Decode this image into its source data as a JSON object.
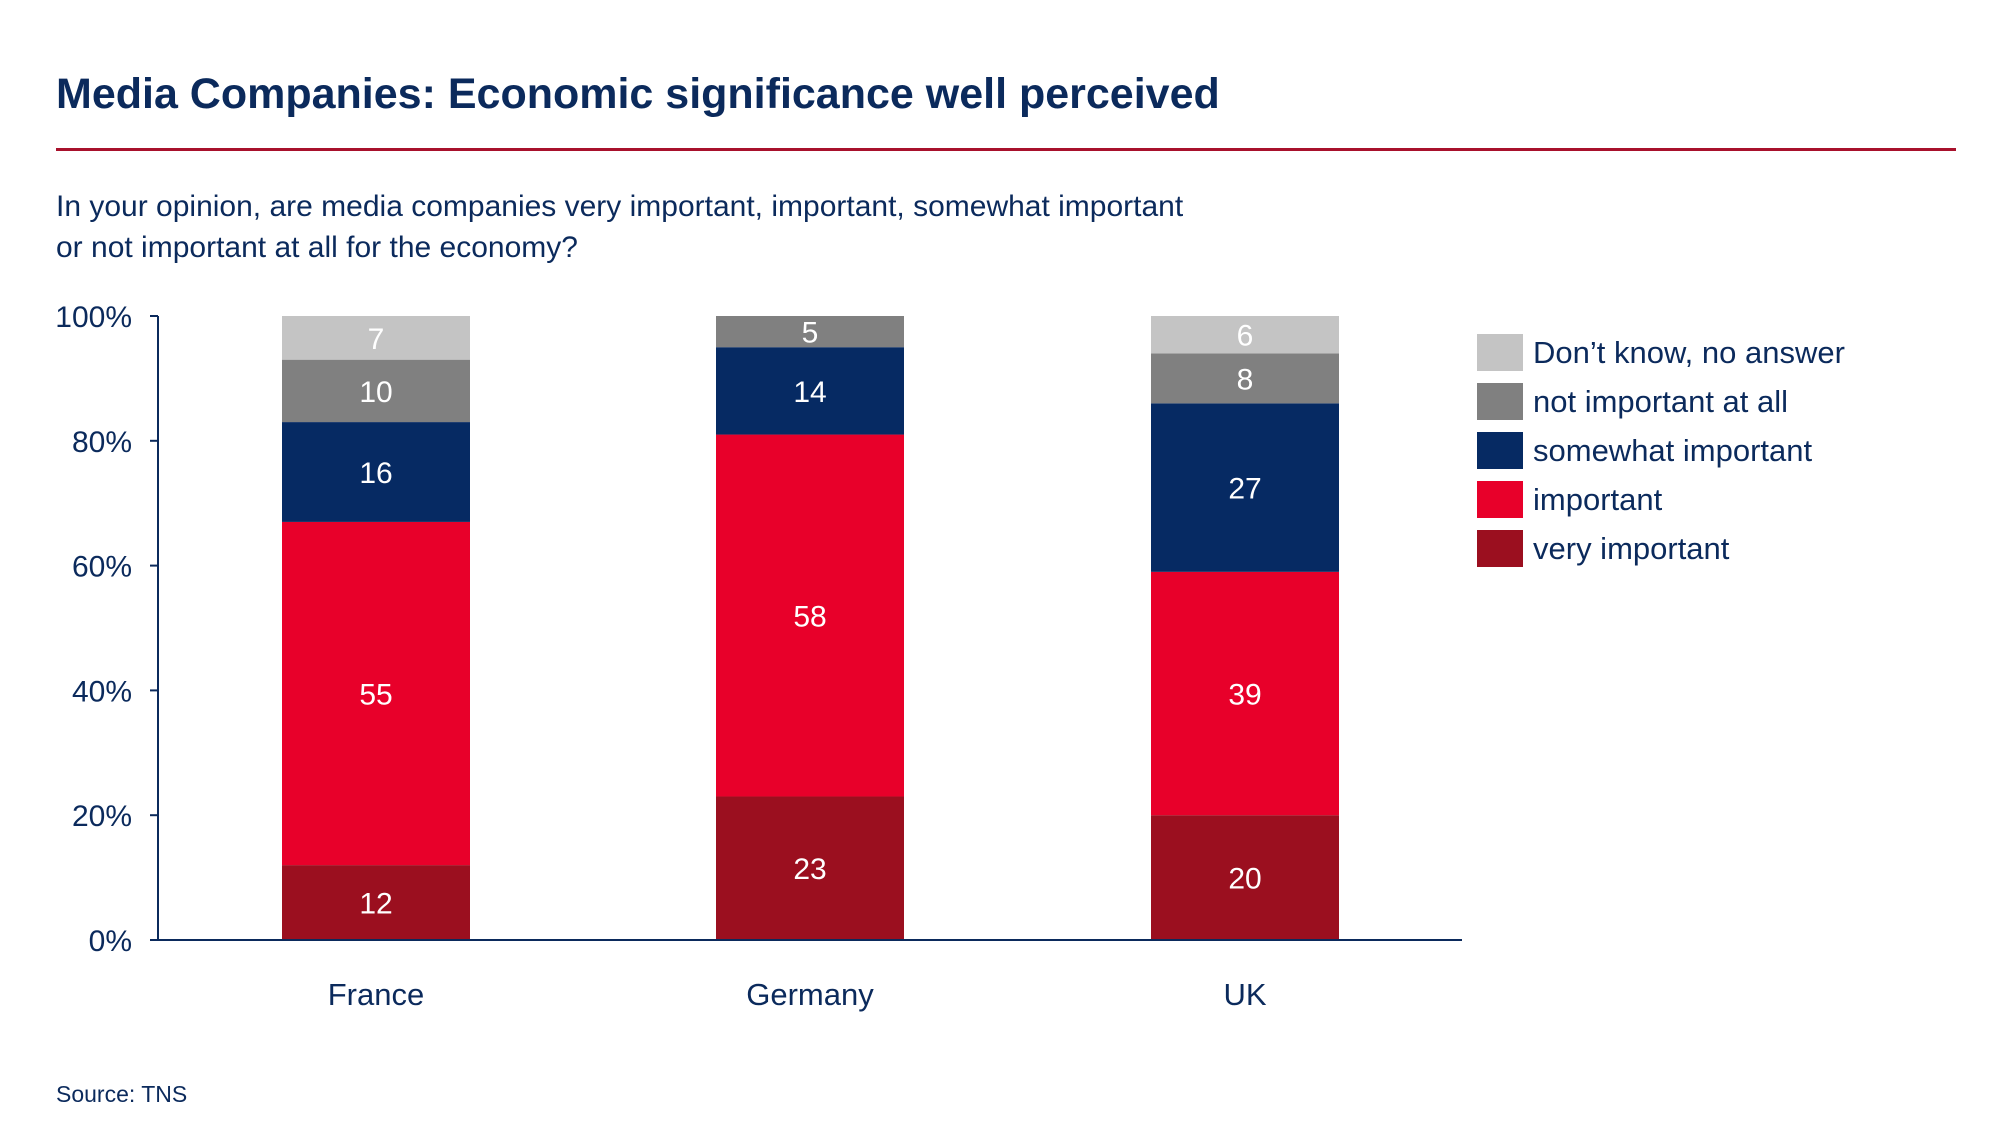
{
  "title": "Media Companies: Economic significance well perceived",
  "question": {
    "line1": "In your opinion, are media companies very important, important, somewhat important",
    "line2": "or not important at all for the economy?"
  },
  "source": "Source: TNS",
  "chart_data": {
    "type": "bar",
    "stacked": true,
    "categories": [
      "France",
      "Germany",
      "UK"
    ],
    "y_ticks": [
      "0%",
      "20%",
      "40%",
      "60%",
      "80%",
      "100%"
    ],
    "ylim": [
      0,
      100
    ],
    "legend_position": "right",
    "grid": false,
    "series": [
      {
        "name": "very important",
        "color": "#9b0f1f",
        "values": [
          12,
          23,
          20
        ]
      },
      {
        "name": "important",
        "color": "#e8002a",
        "values": [
          55,
          58,
          39
        ]
      },
      {
        "name": "somewhat important",
        "color": "#062a63",
        "values": [
          16,
          14,
          27
        ]
      },
      {
        "name": "not important at all",
        "color": "#808080",
        "values": [
          10,
          5,
          8
        ]
      },
      {
        "name": "Don’t know, no answer",
        "color": "#c4c4c4",
        "values": [
          7,
          0,
          6
        ]
      }
    ],
    "axis_color": "#0b2a5c",
    "label_color": "#ffffff"
  }
}
